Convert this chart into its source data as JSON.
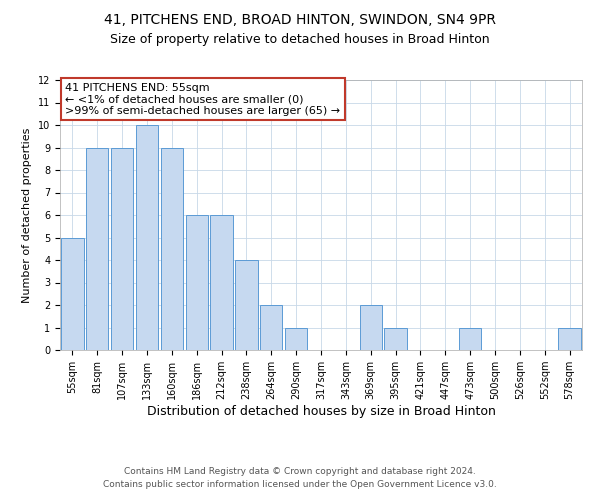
{
  "title": "41, PITCHENS END, BROAD HINTON, SWINDON, SN4 9PR",
  "subtitle": "Size of property relative to detached houses in Broad Hinton",
  "xlabel": "Distribution of detached houses by size in Broad Hinton",
  "ylabel": "Number of detached properties",
  "bar_labels": [
    "55sqm",
    "81sqm",
    "107sqm",
    "133sqm",
    "160sqm",
    "186sqm",
    "212sqm",
    "238sqm",
    "264sqm",
    "290sqm",
    "317sqm",
    "343sqm",
    "369sqm",
    "395sqm",
    "421sqm",
    "447sqm",
    "473sqm",
    "500sqm",
    "526sqm",
    "552sqm",
    "578sqm"
  ],
  "bar_values": [
    5,
    9,
    9,
    10,
    9,
    6,
    6,
    4,
    2,
    1,
    0,
    0,
    2,
    1,
    0,
    0,
    1,
    0,
    0,
    0,
    1
  ],
  "bar_color": "#c6d9f0",
  "bar_edge_color": "#5b9bd5",
  "annotation_box_text": "41 PITCHENS END: 55sqm\n← <1% of detached houses are smaller (0)\n>99% of semi-detached houses are larger (65) →",
  "annotation_box_edge_color": "#c0392b",
  "annotation_box_face_color": "#ffffff",
  "ylim": [
    0,
    12
  ],
  "yticks": [
    0,
    1,
    2,
    3,
    4,
    5,
    6,
    7,
    8,
    9,
    10,
    11,
    12
  ],
  "background_color": "#ffffff",
  "grid_color": "#c8d8e8",
  "footer_line1": "Contains HM Land Registry data © Crown copyright and database right 2024.",
  "footer_line2": "Contains public sector information licensed under the Open Government Licence v3.0.",
  "title_fontsize": 10,
  "subtitle_fontsize": 9,
  "xlabel_fontsize": 9,
  "ylabel_fontsize": 8,
  "tick_fontsize": 7,
  "annotation_fontsize": 8,
  "footer_fontsize": 6.5
}
